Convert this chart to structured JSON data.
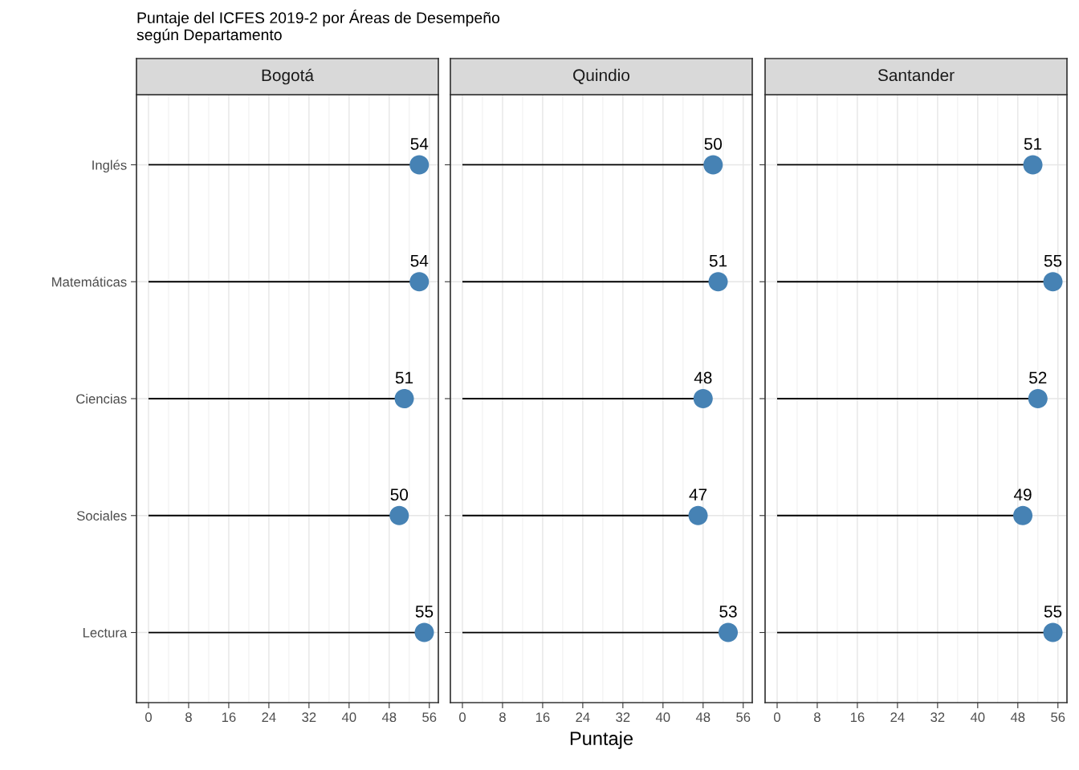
{
  "chart_data": [
    {
      "type": "lollipop",
      "title": "Bogotá",
      "annotations": [
        "Puntaje del ICFES 2019-2 por Áreas de Desempeño\nsegún Departamento"
      ],
      "categories": [
        "Inglés",
        "Matemáticas",
        "Ciencias",
        "Sociales",
        "Lectura"
      ],
      "values": [
        54,
        54,
        51,
        50,
        55
      ],
      "color": "#4682b4",
      "xlim": [
        -2.4,
        57.8
      ],
      "xticks": [
        0,
        8,
        16,
        24,
        32,
        40,
        48,
        56
      ],
      "data_labels": true,
      "grid": true,
      "orientation": "horizontal"
    },
    {
      "type": "lollipop",
      "title": "Quindio",
      "xlabel": "Puntaje",
      "categories": [
        null,
        null,
        null,
        null,
        null
      ],
      "values": [
        50,
        51,
        48,
        47,
        53
      ],
      "color": "#4682b4",
      "xlim": [
        -2.4,
        57.8
      ],
      "xticks": [
        0,
        8,
        16,
        24,
        32,
        40,
        48,
        56
      ],
      "data_labels": true,
      "grid": true,
      "orientation": "horizontal",
      "tick_labels": "x"
    },
    {
      "type": "lollipop",
      "title": "Santander",
      "categories": [
        null,
        null,
        null,
        null,
        null
      ],
      "values": [
        51,
        55,
        52,
        49,
        55
      ],
      "color": "#4682b4",
      "xlim": [
        -2.4,
        57.8
      ],
      "xticks": [
        0,
        8,
        16,
        24,
        32,
        40,
        48,
        56
      ],
      "data_labels": true,
      "grid": true,
      "orientation": "horizontal",
      "tick_labels": "x"
    }
  ]
}
